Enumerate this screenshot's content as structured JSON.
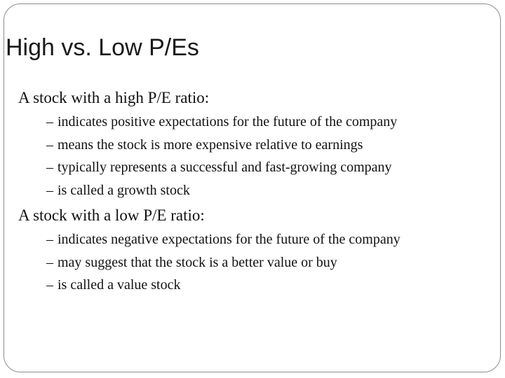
{
  "slide": {
    "title": "High vs. Low P/Es",
    "sections": [
      {
        "heading": "A stock with a high P/E ratio:",
        "items": [
          "indicates positive expectations for the future of the company",
          "means the stock is more expensive relative to earnings",
          "typically represents a successful and fast-growing company",
          "is called a growth stock"
        ]
      },
      {
        "heading": "A stock with a low P/E ratio:",
        "items": [
          "indicates negative expectations for the future of the company",
          "may suggest that the stock is a better value or buy",
          "is called a value stock"
        ]
      }
    ],
    "bullet_char": "–",
    "frame_color": "#8c8c8c",
    "text_color": "#111111"
  }
}
